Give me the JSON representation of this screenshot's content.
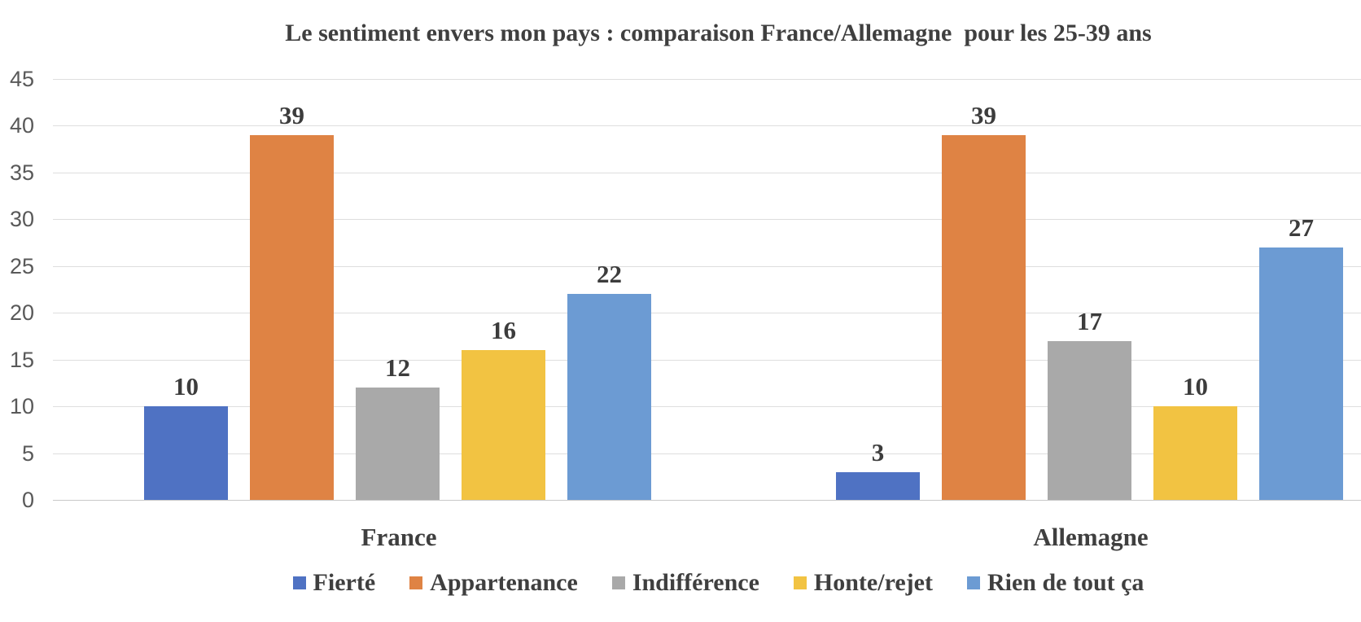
{
  "title": "Le sentiment envers mon pays : comparaison France/Allemagne  pour les 25-39 ans",
  "chart_data": {
    "type": "bar",
    "categories": [
      "France",
      "Allemagne"
    ],
    "series": [
      {
        "name": "Fierté",
        "color": "#4F72C3",
        "values": [
          10,
          3
        ]
      },
      {
        "name": "Appartenance",
        "color": "#DF8344",
        "values": [
          39,
          39
        ]
      },
      {
        "name": "Indifférence",
        "color": "#A9A9A9",
        "values": [
          12,
          17
        ]
      },
      {
        "name": "Honte/rejet",
        "color": "#F2C342",
        "values": [
          16,
          10
        ]
      },
      {
        "name": "Rien de tout ça",
        "color": "#6C9BD3",
        "values": [
          22,
          27
        ]
      }
    ],
    "ylim": [
      0,
      45
    ],
    "yticks": [
      0,
      5,
      10,
      15,
      20,
      25,
      30,
      35,
      40,
      45
    ],
    "grid": true,
    "legend_position": "bottom",
    "data_labels": true
  },
  "styles": {
    "text_color": "#3F3F3F",
    "axis_text_color": "#595959",
    "gridline_color": "#DEDEDE",
    "baseline_color": "#C9C9C9",
    "background": "#FFFFFF"
  }
}
